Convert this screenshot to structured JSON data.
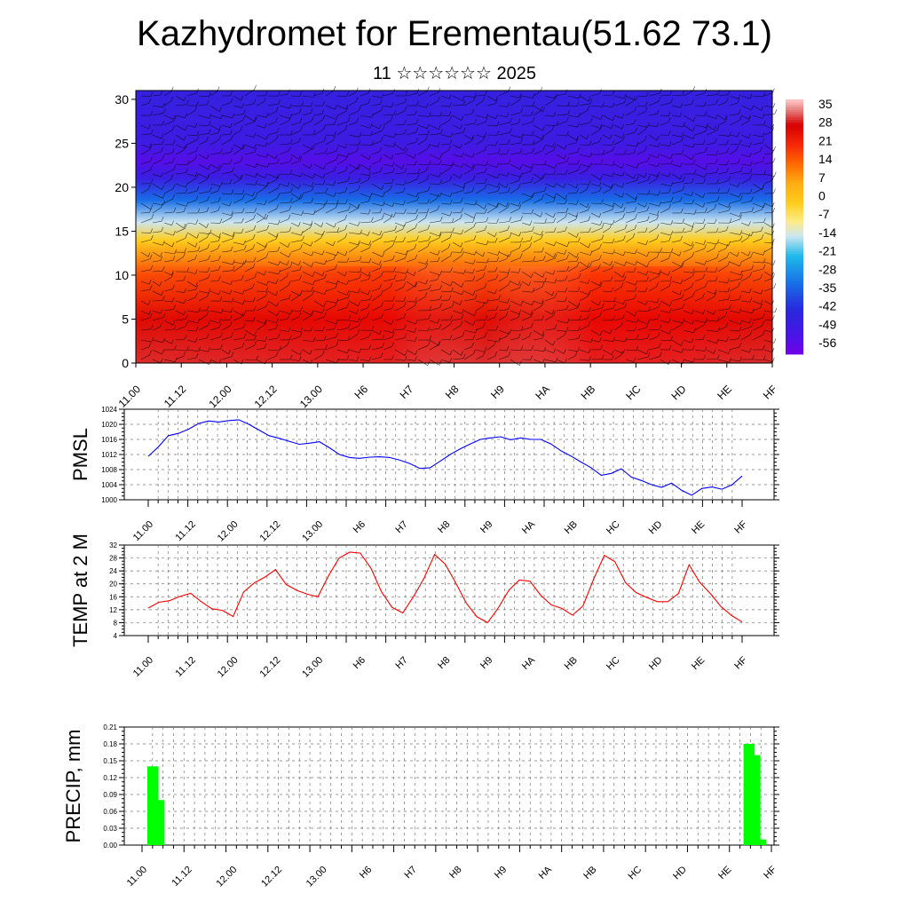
{
  "header": {
    "title": "Kazhydromet for Erementau(51.62 73.1)",
    "subtitle": "11 ☆☆☆☆☆☆ 2025"
  },
  "chart_data": [
    {
      "type": "heatmap",
      "title": "",
      "xlabel": "",
      "ylabel": "",
      "x_ticks": [
        "11.00",
        "11.12",
        "12.00",
        "12.12",
        "13.00",
        "H6",
        "H7",
        "H8",
        "H9",
        "HA",
        "HB",
        "HC",
        "HD",
        "HE",
        "HF"
      ],
      "y_ticks": [
        0,
        5,
        10,
        15,
        20,
        25,
        30
      ],
      "ylim": [
        0,
        31
      ],
      "colorbar_labels": [
        35,
        28,
        21,
        14,
        7,
        0,
        -7,
        -14,
        -21,
        -28,
        -35,
        -42,
        -49,
        -56
      ],
      "colorbar_range": [
        -63,
        38
      ],
      "layers": [
        {
          "height": 0,
          "value": 30
        },
        {
          "height": 5,
          "value": 26
        },
        {
          "height": 10,
          "value": 16
        },
        {
          "height": 14,
          "value": -3
        },
        {
          "height": 16,
          "value": -16
        },
        {
          "height": 18.5,
          "value": -35
        },
        {
          "height": 21,
          "value": -50
        },
        {
          "height": 23,
          "value": -58
        },
        {
          "height": 25,
          "value": -52
        },
        {
          "height": 31,
          "value": -49
        }
      ],
      "grid": false
    },
    {
      "type": "line",
      "ylabel": "PMSL",
      "ylim": [
        1000,
        1024
      ],
      "y_ticks": [
        1000,
        1004,
        1008,
        1012,
        1016,
        1020,
        1024
      ],
      "x_ticks": [
        "11.00",
        "11.12",
        "12.00",
        "12.12",
        "13.00",
        "H6",
        "H7",
        "H8",
        "H9",
        "HA",
        "HB",
        "HC",
        "HD",
        "HE",
        "HF"
      ],
      "series": [
        {
          "color": "#0000ff",
          "values": [
            1011.5,
            1014,
            1017,
            1017.6,
            1018.7,
            1020.2,
            1020.9,
            1020.6,
            1021,
            1021.2,
            1020,
            1018.5,
            1017,
            1016.3,
            1015.5,
            1014.7,
            1015,
            1015.4,
            1013.8,
            1012,
            1011.2,
            1011,
            1011.3,
            1011.4,
            1011.2,
            1010.5,
            1009.6,
            1008.3,
            1008.5,
            1010.2,
            1012,
            1013.5,
            1014.8,
            1016,
            1016.4,
            1016.7,
            1015.9,
            1016.4,
            1016,
            1016,
            1014.8,
            1013,
            1011.6,
            1010,
            1008.5,
            1006.5,
            1007,
            1008.2,
            1006,
            1005.1,
            1004,
            1003.3,
            1004.4,
            1002.5,
            1001.2,
            1003,
            1003.4,
            1002.8,
            1004,
            1006.3
          ]
        }
      ],
      "grid": true
    },
    {
      "type": "line",
      "ylabel": "TEMP at 2 M",
      "ylim": [
        4,
        32
      ],
      "y_ticks": [
        4,
        8,
        12,
        16,
        20,
        24,
        28,
        32
      ],
      "x_ticks": [
        "11.00",
        "11.12",
        "12.00",
        "12.12",
        "13.00",
        "H6",
        "H7",
        "H8",
        "H9",
        "HA",
        "HB",
        "HC",
        "HD",
        "HE",
        "HF"
      ],
      "series": [
        {
          "color": "#ff0000",
          "values": [
            12.5,
            14.3,
            14.8,
            16.1,
            17.1,
            14.5,
            12.3,
            11.8,
            9.9,
            17.5,
            20.3,
            22.1,
            24.4,
            19.8,
            18,
            16.8,
            16,
            22.5,
            28,
            29.8,
            29.5,
            24.8,
            17.5,
            12.7,
            11,
            16,
            21.7,
            29.1,
            26.1,
            20.3,
            14,
            9.8,
            8,
            12.5,
            18,
            21.2,
            20.8,
            16.5,
            13.5,
            12.4,
            10.3,
            13.2,
            21.5,
            28.8,
            26.9,
            20.4,
            17.3,
            15.8,
            14.5,
            14.5,
            17,
            25.9,
            20.5,
            17,
            13,
            10.2,
            8.2
          ]
        }
      ],
      "grid": true
    },
    {
      "type": "bar",
      "ylabel": "PRECIP, mm",
      "ylim": [
        0,
        0.21
      ],
      "y_ticks": [
        "0.00",
        "0.03",
        "0.06",
        "0.09",
        "0.12",
        "0.15",
        "0.18",
        "0.21"
      ],
      "x_ticks": [
        "11.00",
        "11.12",
        "12.00",
        "12.12",
        "13.00",
        "H6",
        "H7",
        "H8",
        "H9",
        "HA",
        "HB",
        "HC",
        "HD",
        "HE",
        "HF"
      ],
      "bar_color": "#00ff00",
      "values": [
        0.14,
        0.08,
        0,
        0,
        0,
        0,
        0,
        0,
        0,
        0,
        0,
        0,
        0,
        0,
        0,
        0,
        0,
        0,
        0,
        0,
        0,
        0,
        0,
        0,
        0,
        0,
        0,
        0,
        0,
        0,
        0,
        0,
        0,
        0,
        0,
        0,
        0,
        0,
        0,
        0,
        0,
        0,
        0,
        0,
        0,
        0,
        0,
        0,
        0,
        0,
        0,
        0,
        0,
        0,
        0,
        0,
        0,
        0,
        0,
        0,
        0,
        0,
        0,
        0,
        0,
        0,
        0,
        0,
        0,
        0,
        0,
        0,
        0,
        0,
        0,
        0,
        0,
        0,
        0,
        0,
        0,
        0,
        0,
        0,
        0,
        0,
        0,
        0,
        0,
        0,
        0,
        0,
        0,
        0,
        0,
        0,
        0,
        0,
        0,
        0,
        0,
        0,
        0,
        0.18,
        0.16,
        0.01
      ],
      "grid": true
    }
  ]
}
